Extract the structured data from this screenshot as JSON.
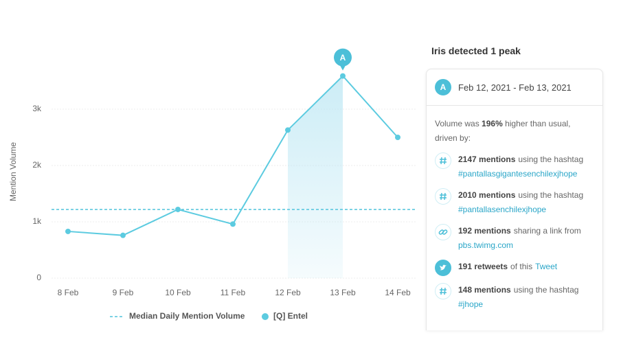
{
  "chart_data": {
    "type": "line",
    "y_label": "Mention Volume",
    "categories": [
      "8 Feb",
      "9 Feb",
      "10 Feb",
      "11 Feb",
      "12 Feb",
      "13 Feb",
      "14 Feb"
    ],
    "series": [
      {
        "name": "[Q] Entel",
        "color": "#5ccbe0",
        "values": [
          830,
          760,
          1220,
          960,
          2630,
          3590,
          2500
        ]
      }
    ],
    "reference_line": {
      "name": "Median Daily Mention Volume",
      "color": "#4fc3dc",
      "value": 1220
    },
    "highlight": {
      "from": "12 Feb",
      "to": "13 Feb",
      "color": "#bfe8f4",
      "marker": "A"
    },
    "ylim": [
      0,
      3800
    ],
    "yticks": [
      {
        "value": 0,
        "label": "0"
      },
      {
        "value": 1000,
        "label": "1k"
      },
      {
        "value": 2000,
        "label": "2k"
      },
      {
        "value": 3000,
        "label": "3k"
      }
    ],
    "grid": true
  },
  "panel": {
    "title": "Iris detected 1 peak",
    "badge": "A",
    "dates": "Feb 12, 2021 - Feb 13, 2021",
    "summary": [
      "Volume was",
      "196%",
      "higher than usual, driven by:"
    ],
    "items": [
      {
        "icon": "hashtag",
        "count": "2147 mentions",
        "text": "using the hashtag",
        "link": "#pantallasgigantesenchilexjhope"
      },
      {
        "icon": "hashtag",
        "count": "2010 mentions",
        "text": "using the hashtag",
        "link": "#pantallasenchilexjhope"
      },
      {
        "icon": "link",
        "count": "192 mentions",
        "text": "sharing a link from",
        "link": "pbs.twimg.com"
      },
      {
        "icon": "twitter",
        "count": "191 retweets",
        "text": "of this",
        "link": "Tweet",
        "inline": true
      },
      {
        "icon": "hashtag",
        "count": "148 mentions",
        "text": "using the hashtag",
        "link": "#jhope"
      }
    ]
  }
}
